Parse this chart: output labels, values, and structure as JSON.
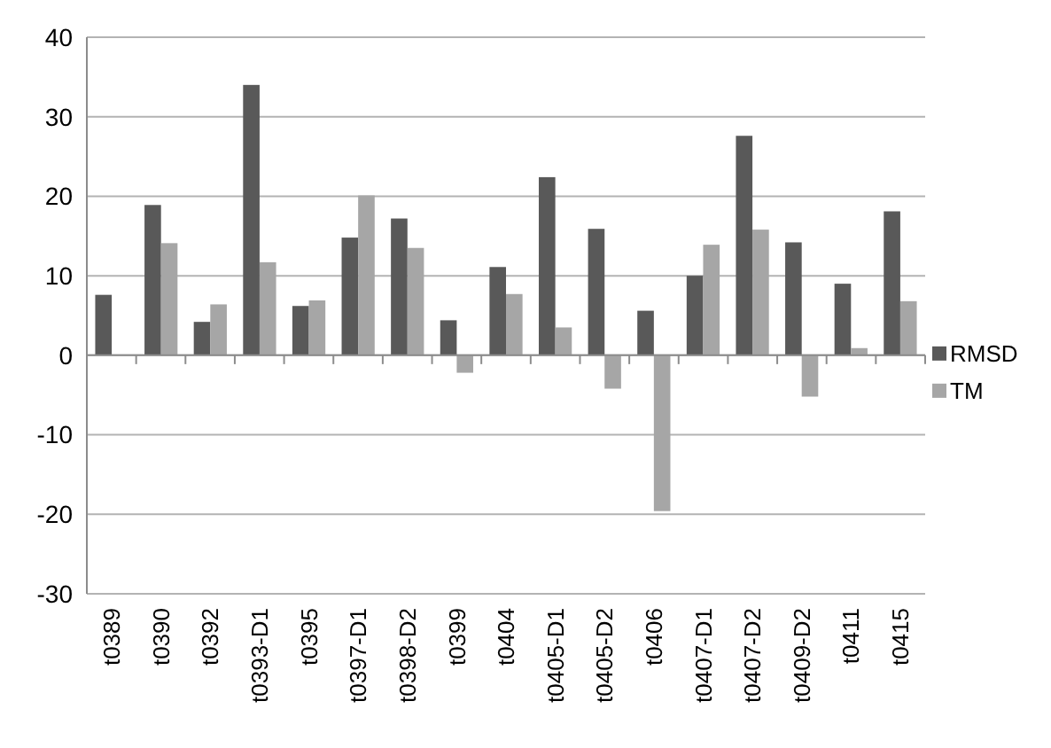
{
  "chart_data": {
    "type": "bar",
    "categories": [
      "t0389",
      "t0390",
      "t0392",
      "t0393-D1",
      "t0395",
      "t0397-D1",
      "t0398-D2",
      "t0399",
      "t0404",
      "t0405-D1",
      "t0405-D2",
      "t0406",
      "t0407-D1",
      "t0407-D2",
      "t0409-D2",
      "t0411",
      "t0415"
    ],
    "series": [
      {
        "name": "RMSD",
        "color": "#595959",
        "values": [
          7.6,
          18.9,
          4.2,
          34.0,
          6.2,
          14.8,
          17.2,
          4.4,
          11.1,
          22.4,
          15.9,
          5.6,
          10.0,
          27.6,
          14.2,
          9.0,
          18.1
        ]
      },
      {
        "name": "TM",
        "color": "#a6a6a6",
        "values": [
          0,
          14.1,
          6.4,
          11.7,
          6.9,
          20.1,
          13.5,
          -2.2,
          7.7,
          3.5,
          -4.2,
          -19.6,
          13.9,
          15.8,
          -5.2,
          0.9,
          6.8
        ]
      }
    ],
    "ylim": [
      -30,
      40
    ],
    "yticks": [
      -30,
      -20,
      -10,
      0,
      10,
      20,
      30,
      40
    ],
    "grid": "y",
    "legend": "right"
  }
}
